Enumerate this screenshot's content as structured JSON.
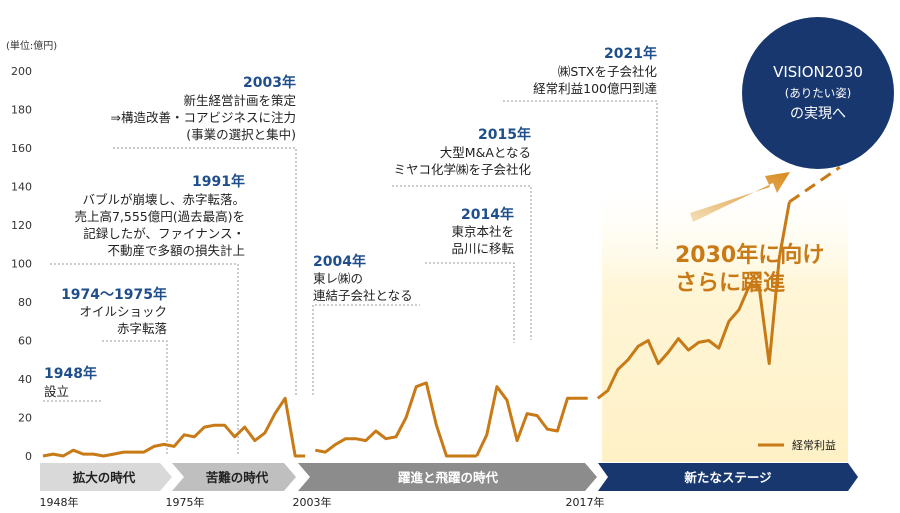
{
  "chart_data": {
    "type": "line",
    "unit_label": "(単位:億円)",
    "y_ticks": [
      "200",
      "180",
      "160",
      "140",
      "120",
      "100",
      "80",
      "60",
      "40",
      "20",
      "0"
    ],
    "ylim": [
      0,
      200
    ],
    "xlim": [
      1948,
      2029
    ],
    "legend": {
      "label": "経常利益",
      "position": "bottom-right",
      "color": "#c77a16"
    },
    "line_color": "#c77a16",
    "series": [
      {
        "name": "経常利益",
        "segments": [
          {
            "x": [
              1948,
              1949,
              1950,
              1951,
              1952,
              1953,
              1954,
              1955,
              1956,
              1957,
              1958,
              1959,
              1960,
              1961,
              1962,
              1963,
              1964,
              1965,
              1966,
              1967,
              1968,
              1969,
              1970,
              1971,
              1972,
              1973,
              1974
            ],
            "y": [
              0,
              1,
              0,
              3,
              1,
              1,
              0,
              1,
              2,
              2,
              2,
              5,
              6,
              5,
              11,
              10,
              15,
              16,
              16,
              10,
              15,
              8,
              12,
              22,
              30,
              0,
              0
            ]
          },
          {
            "x": [
              1975,
              1976,
              1977,
              1978,
              1979,
              1980,
              1981,
              1982,
              1983,
              1984,
              1985,
              1986,
              1987,
              1988,
              1989,
              1990,
              1991
            ],
            "y": [
              3,
              2,
              6,
              9,
              9,
              8,
              13,
              9,
              10,
              20,
              36,
              38,
              16,
              0,
              0,
              0,
              0
            ]
          },
          {
            "x": [
              1991,
              1992,
              1993,
              1994,
              1995,
              1996,
              1997,
              1998,
              1999,
              2000,
              2001,
              2002
            ],
            "y": [
              0,
              11,
              36,
              29,
              8,
              22,
              21,
              14,
              13,
              30,
              30,
              30
            ]
          },
          {
            "x": [
              2003,
              2004,
              2005,
              2006,
              2007,
              2008,
              2009,
              2010,
              2011,
              2012,
              2013,
              2014,
              2015,
              2016,
              2017,
              2018,
              2019,
              2020,
              2021,
              2022
            ],
            "y": [
              30,
              34,
              45,
              50,
              57,
              60,
              48,
              54,
              61,
              55,
              59,
              60,
              56,
              70,
              76,
              88,
              88,
              48,
              103,
              132
            ]
          }
        ]
      }
    ],
    "projection": {
      "from": [
        2022,
        132
      ],
      "to": [
        2027,
        150
      ],
      "style": "dashed"
    },
    "milestones": [
      {
        "year": "1948年",
        "lines": [
          "設立"
        ]
      },
      {
        "year": "1974～1975年",
        "lines": [
          "オイルショック",
          "赤字転落"
        ]
      },
      {
        "year": "1991年",
        "lines": [
          "バブルが崩壊し、赤字転落。",
          "売上高7,555億円(過去最高)を",
          "記録したが、ファイナンス・",
          "不動産で多額の損失計上"
        ]
      },
      {
        "year": "2003年",
        "lines": [
          "新生経営計画を策定",
          "⇒構造改善・コアビジネスに注力",
          "(事業の選択と集中)"
        ]
      },
      {
        "year": "2004年",
        "lines": [
          "東レ㈱の",
          "連結子会社となる"
        ]
      },
      {
        "year": "2014年",
        "lines": [
          "東京本社を",
          "品川に移転"
        ]
      },
      {
        "year": "2015年",
        "lines": [
          "大型M&Aとなる",
          "ミヤコ化学㈱を子会社化"
        ]
      },
      {
        "year": "2021年",
        "lines": [
          "㈱STXを子会社化",
          "経常利益100億円到達"
        ]
      }
    ],
    "eras": [
      {
        "label": "拡大の時代",
        "color": "#d9d9d9",
        "text_color": "#222222"
      },
      {
        "label": "苦難の時代",
        "color": "#bfbfbf",
        "text_color": "#222222"
      },
      {
        "label": "躍進と飛躍の時代",
        "color": "#8c8c8c",
        "text_color": "#ffffff"
      },
      {
        "label": "新たなステージ",
        "color": "#17376e",
        "text_color": "#ffffff"
      }
    ],
    "x_years": [
      "1948年",
      "1975年",
      "2003年",
      "2017年"
    ],
    "callout": [
      "2030年に向け",
      "さらに躍進"
    ],
    "vision": {
      "title": "VISION2030",
      "sub": "(ありたい姿)",
      "tail": "の実現へ",
      "color": "#17376e"
    }
  }
}
